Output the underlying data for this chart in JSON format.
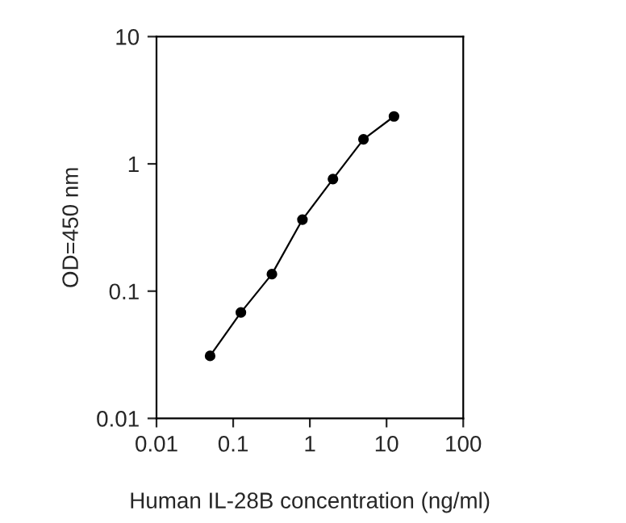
{
  "chart_data": {
    "type": "line",
    "xlabel": "Human IL-28B concentration (ng/ml)",
    "ylabel": "OD=450 nm",
    "x": [
      0.05,
      0.126,
      0.32,
      0.8,
      2.0,
      5.0,
      12.5
    ],
    "series": [
      {
        "color": "#000000",
        "values": [
          0.031,
          0.068,
          0.136,
          0.365,
          0.76,
          1.56,
          2.36
        ]
      }
    ],
    "log": "xy",
    "xlim": [
      0.01,
      100
    ],
    "ylim": [
      0.01,
      10
    ],
    "xticks": [
      0.01,
      0.1,
      1,
      10,
      100
    ],
    "yticks": [
      0.01,
      0.1,
      1,
      10
    ],
    "marker": "circle",
    "line_style": "solid",
    "grid": false,
    "legend": false
  }
}
